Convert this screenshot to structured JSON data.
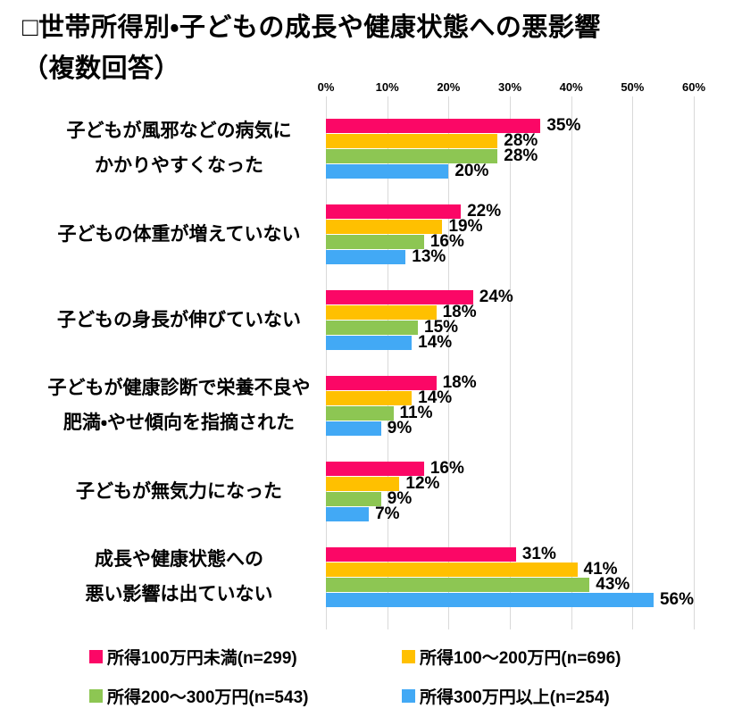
{
  "title": {
    "line1": "□世帯所得別・子どもの成長や健康状態への悪影響",
    "line2": "（複数回答）"
  },
  "colors": {
    "gridline": "#D9D9D9",
    "text": "#000000",
    "background": "#FFFFFF"
  },
  "chart_data": {
    "type": "bar",
    "orientation": "horizontal",
    "title": "世帯所得別・子どもの成長や健康状態への悪影響（複数回答）",
    "xlabel": "",
    "ylabel": "",
    "xlim": [
      0,
      60
    ],
    "x_ticks": [
      "0%",
      "10%",
      "20%",
      "30%",
      "40%",
      "50%",
      "60%"
    ],
    "grid": true,
    "legend_position": "bottom",
    "value_suffix": "%",
    "categories": [
      [
        "子どもが風邪などの病気に",
        "かかりやすくなった"
      ],
      [
        "子どもの体重が増えていない"
      ],
      [
        "子どもの身長が伸びていない"
      ],
      [
        "子どもが健康診断で栄養不良や",
        "肥満・やせ傾向を指摘された"
      ],
      [
        "子どもが無気力になった"
      ],
      [
        "成長や健康状態への",
        "悪い影響は出ていない"
      ]
    ],
    "series": [
      {
        "name": "所得100万円未満(n=299)",
        "color": "#FB0766",
        "values": [
          35,
          22,
          24,
          18,
          16,
          31
        ]
      },
      {
        "name": "所得100～200万円(n=696)",
        "color": "#FFC000",
        "values": [
          28,
          19,
          18,
          14,
          12,
          41
        ]
      },
      {
        "name": "所得200～300万円(n=543)",
        "color": "#8DC653",
        "values": [
          28,
          16,
          15,
          11,
          9,
          43
        ]
      },
      {
        "name": "所得300万円以上(n=254)",
        "color": "#42A9F5",
        "values": [
          20,
          13,
          14,
          9,
          7,
          56
        ]
      }
    ]
  }
}
